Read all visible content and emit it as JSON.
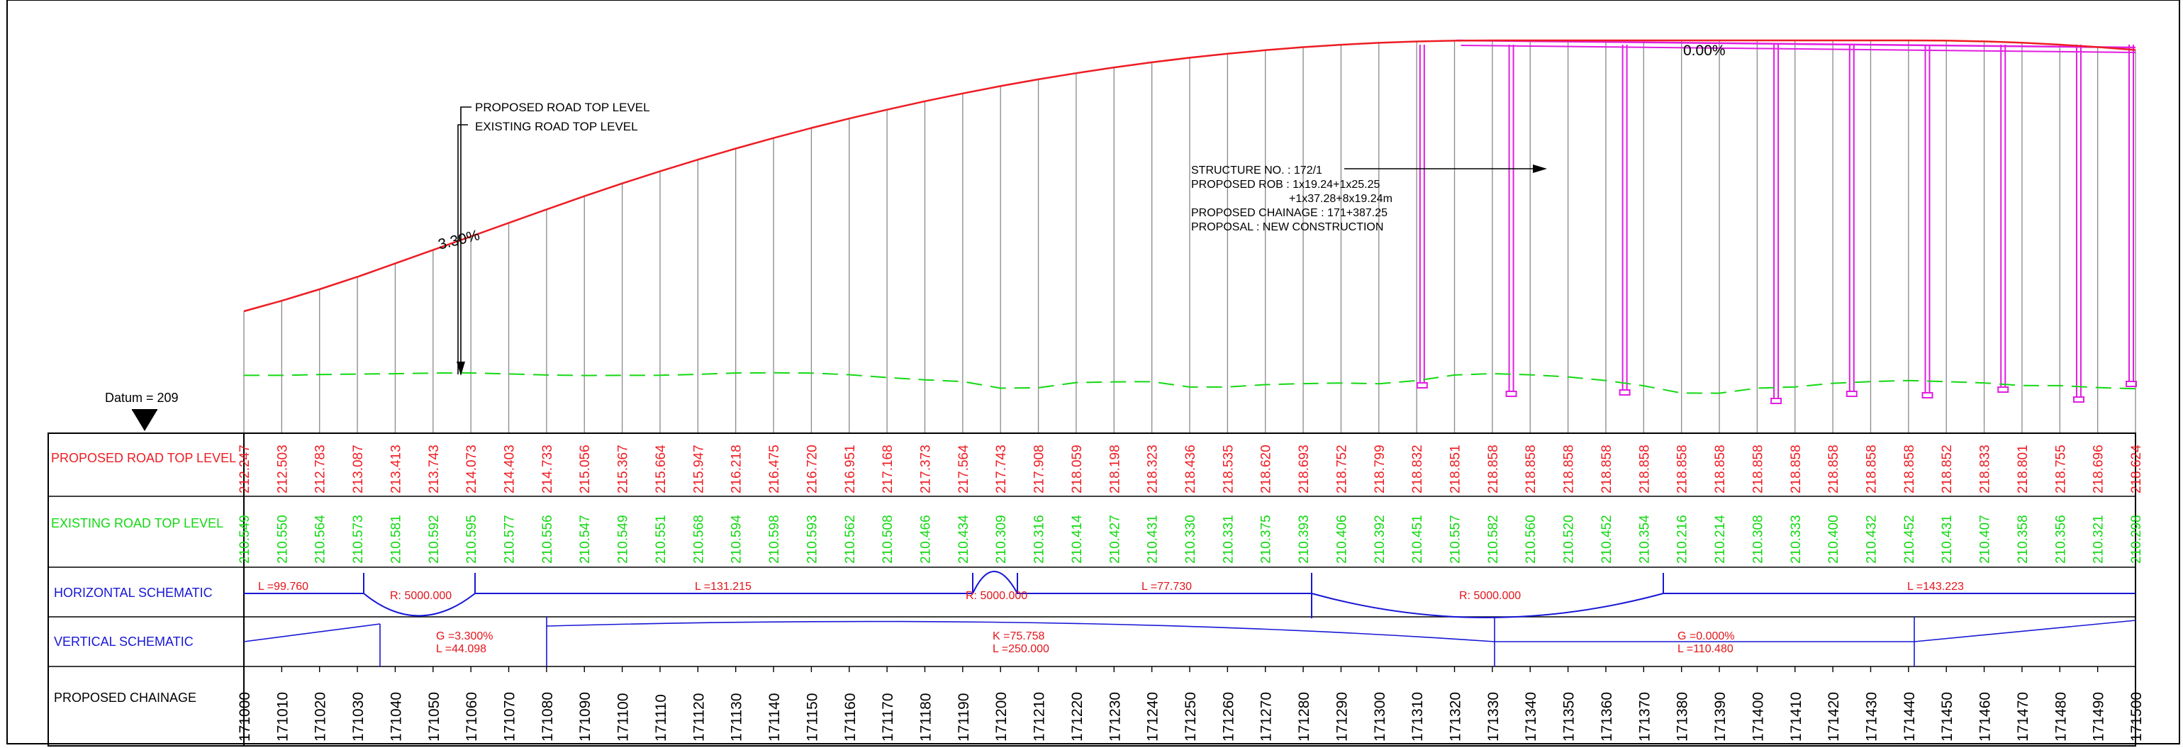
{
  "colors": {
    "proposed": "#ee1c23",
    "existing": "#13d813",
    "schematic": "#1717d6",
    "structure": "#e11ee1",
    "ordinate": "#888888",
    "frame": "#000000",
    "annotation": "#e3141a"
  },
  "datum": {
    "label": "Datum = 209"
  },
  "top_grade": {
    "label": "0.00%"
  },
  "rise_grade": {
    "label": "3.30%"
  },
  "leaders": {
    "proposed": "PROPOSED ROAD TOP LEVEL",
    "existing": "EXISTING ROAD TOP LEVEL"
  },
  "structure_note": {
    "lines": [
      "STRUCTURE  NO.  :    172/1",
      "PROPOSED  ROB  :    1x19.24+1x25.25",
      "+1x37.28+8x19.24m",
      "PROPOSED  CHAINAGE  :  171+387.25",
      "PROPOSAL  :  NEW  CONSTRUCTION"
    ]
  },
  "rows": {
    "proposed": "PROPOSED ROAD TOP LEVEL",
    "existing": "EXISTING ROAD TOP LEVEL",
    "horizontal": "HORIZONTAL  SCHEMATIC",
    "vertical": "VERTICAL  SCHEMATIC",
    "chainage": "PROPOSED CHAINAGE"
  },
  "horizontal_schematic": [
    {
      "type": "straight",
      "label": "L  =99.760"
    },
    {
      "type": "curve",
      "label": "R:  5000.000"
    },
    {
      "type": "straight",
      "label": "L  =131.215"
    },
    {
      "type": "curve",
      "label": "R:  5000.000"
    },
    {
      "type": "straight",
      "label": "L  =77.730"
    },
    {
      "type": "curve",
      "label": "R:  5000.000"
    },
    {
      "type": "straight",
      "label": "L  =143.223"
    }
  ],
  "vertical_schematic": [
    {
      "line1": "G  =3.300%",
      "line2": "L  =44.098"
    },
    {
      "line1": "K  =75.758",
      "line2": "L  =250.000"
    },
    {
      "line1": "G  =0.000%",
      "line2": "L  =110.480"
    }
  ],
  "chart_data": {
    "type": "line",
    "x_label": "PROPOSED CHAINAGE",
    "chainage": [
      "171000",
      "171010",
      "171020",
      "171030",
      "171040",
      "171050",
      "171060",
      "171070",
      "171080",
      "171090",
      "171100",
      "171110",
      "171120",
      "171130",
      "171140",
      "171150",
      "171160",
      "171170",
      "171180",
      "171190",
      "171200",
      "171210",
      "171220",
      "171230",
      "171240",
      "171250",
      "171260",
      "171270",
      "171280",
      "171290",
      "171300",
      "171310",
      "171320",
      "171330",
      "171340",
      "171350",
      "171360",
      "171370",
      "171380",
      "171390",
      "171400",
      "171410",
      "171420",
      "171430",
      "171440",
      "171450",
      "171460",
      "171470",
      "171480",
      "171490",
      "171500"
    ],
    "series": [
      {
        "name": "PROPOSED ROAD TOP LEVEL",
        "values": [
          "212.247",
          "212.503",
          "212.783",
          "213.087",
          "213.413",
          "213.743",
          "214.073",
          "214.403",
          "214.733",
          "215.056",
          "215.367",
          "215.664",
          "215.947",
          "216.218",
          "216.475",
          "216.720",
          "216.951",
          "217.168",
          "217.373",
          "217.564",
          "217.743",
          "217.908",
          "218.059",
          "218.198",
          "218.323",
          "218.436",
          "218.535",
          "218.620",
          "218.693",
          "218.752",
          "218.799",
          "218.832",
          "218.851",
          "218.858",
          "218.858",
          "218.858",
          "218.858",
          "218.858",
          "218.858",
          "218.858",
          "218.858",
          "218.858",
          "218.858",
          "218.858",
          "218.858",
          "218.852",
          "218.833",
          "218.801",
          "218.755",
          "218.696",
          "218.624"
        ]
      },
      {
        "name": "EXISTING ROAD TOP LEVEL",
        "values": [
          "210.549",
          "210.550",
          "210.564",
          "210.573",
          "210.581",
          "210.592",
          "210.595",
          "210.577",
          "210.556",
          "210.547",
          "210.549",
          "210.551",
          "210.568",
          "210.594",
          "210.598",
          "210.593",
          "210.562",
          "210.508",
          "210.466",
          "210.434",
          "210.309",
          "210.316",
          "210.414",
          "210.427",
          "210.431",
          "210.330",
          "210.331",
          "210.375",
          "210.393",
          "210.406",
          "210.392",
          "210.451",
          "210.557",
          "210.582",
          "210.560",
          "210.520",
          "210.452",
          "210.354",
          "210.216",
          "210.214",
          "210.308",
          "210.333",
          "210.400",
          "210.432",
          "210.452",
          "210.431",
          "210.407",
          "210.358",
          "210.356",
          "210.321",
          "210.298"
        ]
      }
    ],
    "datum": 209
  }
}
